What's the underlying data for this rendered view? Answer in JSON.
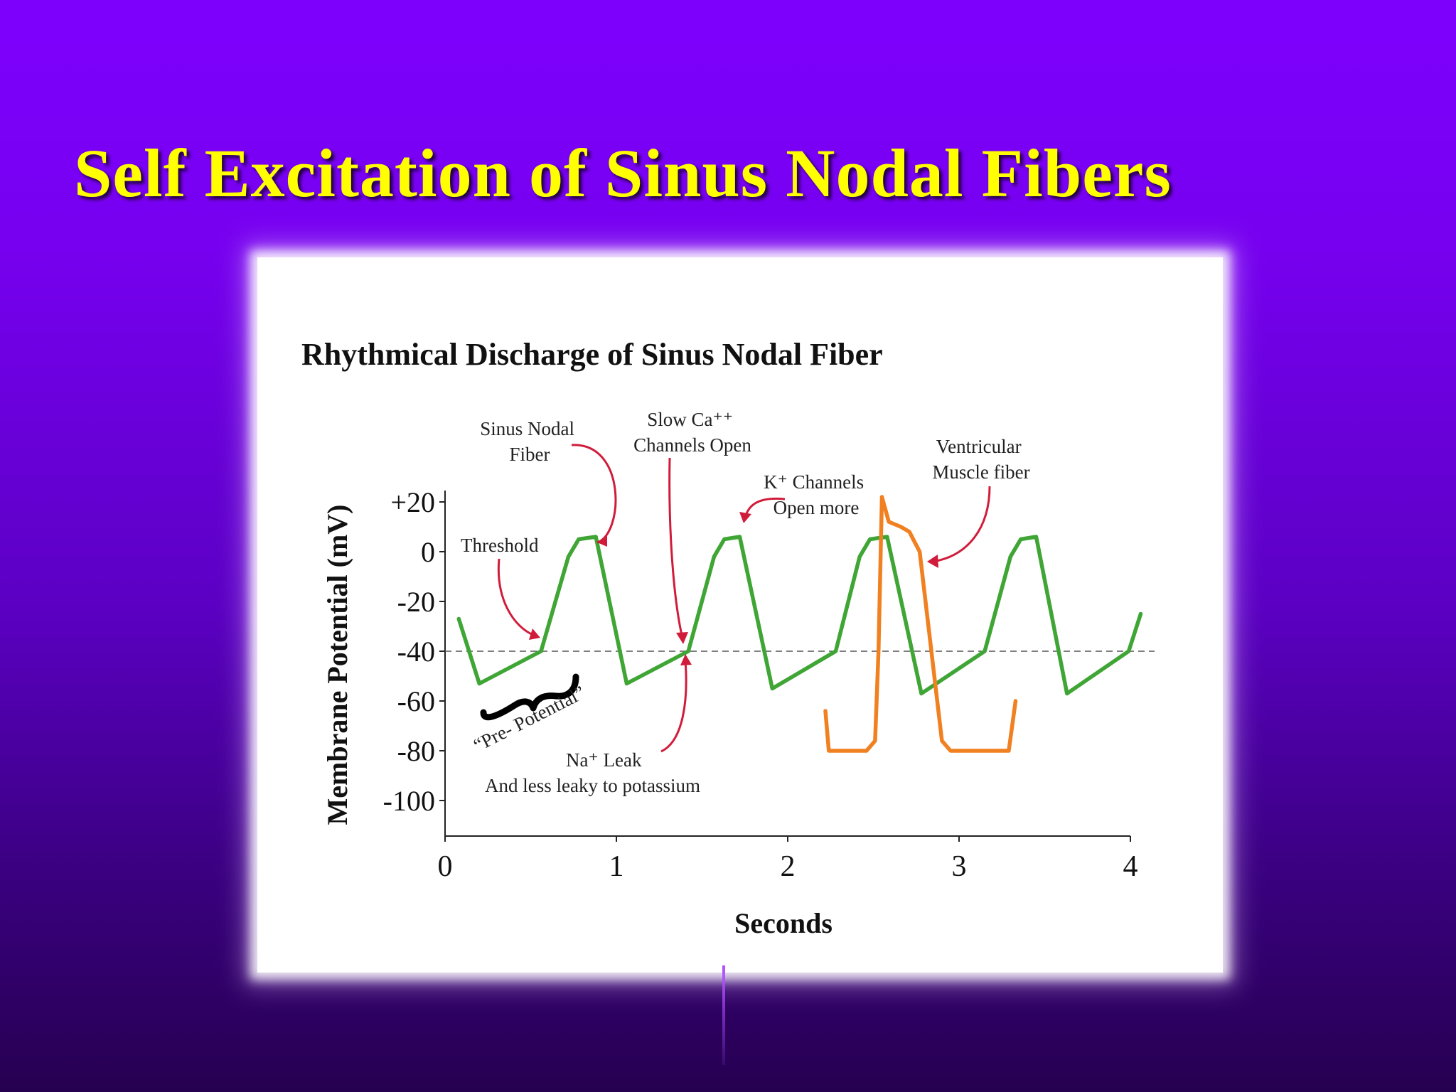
{
  "slide": {
    "title": "Self Excitation of Sinus Nodal Fibers"
  },
  "chart_data": {
    "type": "line",
    "title": "Rhythmical Discharge of Sinus Nodal Fiber",
    "xlabel": "Seconds",
    "ylabel": "Membrane Potential (mV)",
    "xlim": [
      0,
      4
    ],
    "ylim": [
      -115,
      25
    ],
    "xticks": [
      0,
      1,
      2,
      3,
      4
    ],
    "yticks": [
      20,
      0,
      -20,
      -40,
      -60,
      -80,
      -100
    ],
    "ytick_labels": [
      "+20",
      "0",
      "-20",
      "-40",
      "-60",
      "-80",
      "-100"
    ],
    "threshold_line": {
      "y": -40,
      "style": "dashed"
    },
    "series": [
      {
        "color": "#3fa535",
        "points": [
          [
            0.08,
            -27
          ],
          [
            0.2,
            -53
          ],
          [
            0.56,
            -40
          ],
          [
            0.72,
            -2
          ],
          [
            0.78,
            5
          ],
          [
            0.88,
            6
          ],
          [
            1.06,
            -53
          ],
          [
            1.42,
            -40
          ],
          [
            1.57,
            -2
          ],
          [
            1.63,
            5
          ],
          [
            1.72,
            6
          ],
          [
            1.91,
            -55
          ],
          [
            2.28,
            -40
          ],
          [
            2.42,
            -2
          ],
          [
            2.48,
            5
          ],
          [
            2.58,
            6
          ],
          [
            2.78,
            -57
          ],
          [
            3.15,
            -40
          ],
          [
            3.3,
            -2
          ],
          [
            3.36,
            5
          ],
          [
            3.45,
            6
          ],
          [
            3.63,
            -57
          ],
          [
            3.99,
            -40
          ],
          [
            4.06,
            -25
          ]
        ]
      },
      {
        "color": "#f08020",
        "points": [
          [
            2.22,
            -64
          ],
          [
            2.24,
            -80
          ],
          [
            2.46,
            -80
          ],
          [
            2.51,
            -76
          ],
          [
            2.53,
            -40
          ],
          [
            2.55,
            22
          ],
          [
            2.59,
            12
          ],
          [
            2.66,
            10
          ],
          [
            2.71,
            8
          ],
          [
            2.77,
            0
          ],
          [
            2.9,
            -76
          ],
          [
            2.95,
            -80
          ],
          [
            3.29,
            -80
          ],
          [
            3.33,
            -60
          ]
        ]
      }
    ],
    "annotations": [
      {
        "lines": [
          "Sinus Nodal",
          "Fiber"
        ]
      },
      {
        "lines": [
          "Slow Ca⁺⁺",
          "Channels Open"
        ]
      },
      {
        "lines": [
          "K⁺ Channels",
          "Open more"
        ]
      },
      {
        "lines": [
          "Ventricular",
          "Muscle fiber"
        ]
      },
      {
        "lines": [
          "Threshold"
        ]
      },
      {
        "lines": [
          "“Pre- Potential”"
        ]
      },
      {
        "lines": [
          "Na⁺ Leak",
          "And less leaky to potassium"
        ]
      }
    ]
  }
}
